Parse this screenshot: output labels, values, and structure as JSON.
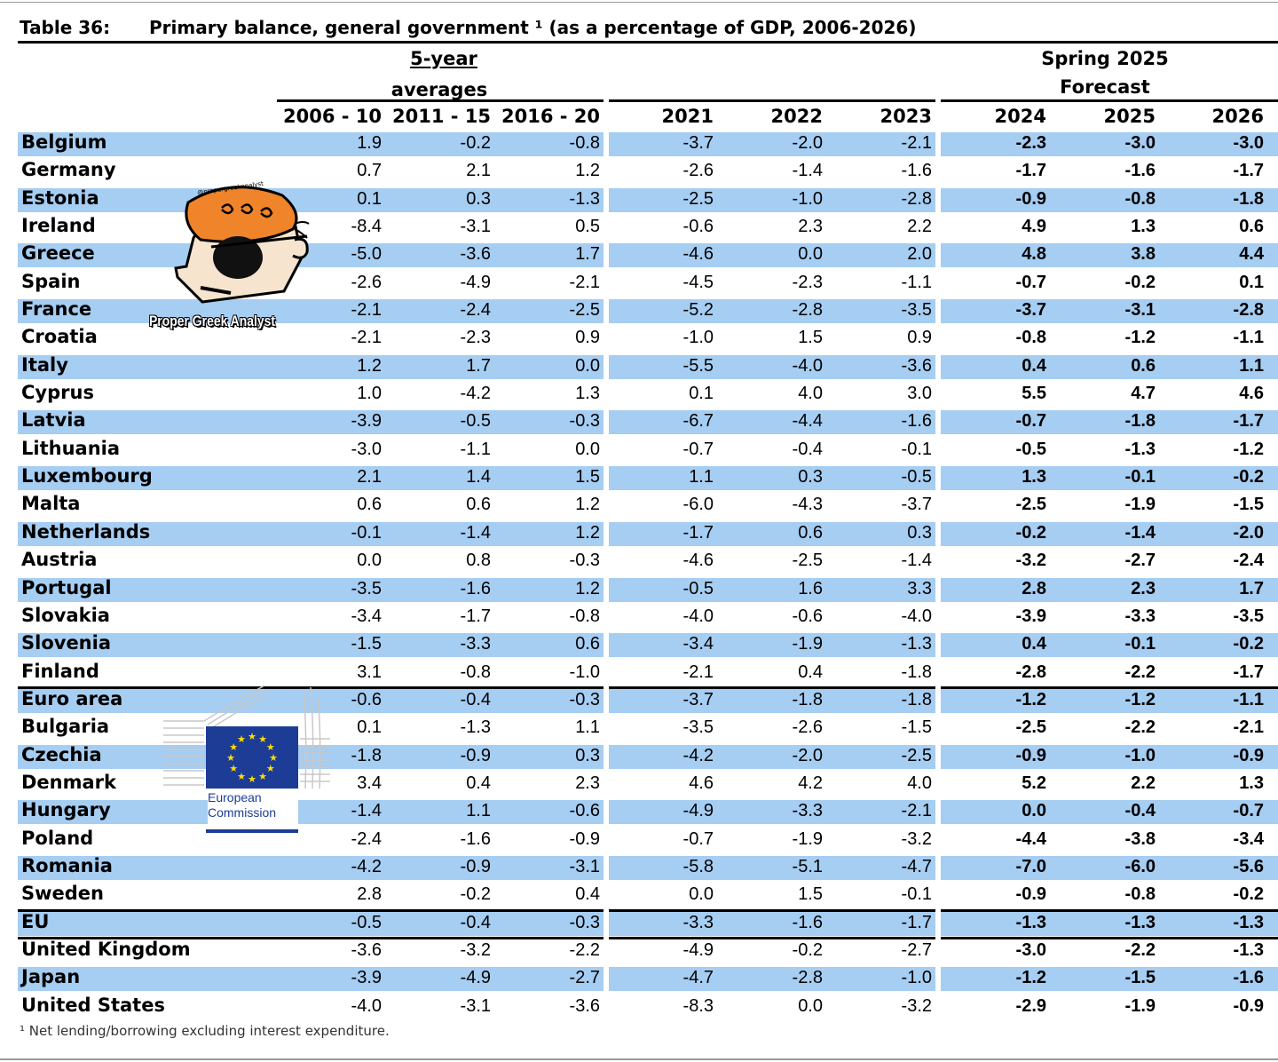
{
  "table": {
    "label": "Table 36:",
    "title": "Primary balance, general government ¹ (as a percentage of GDP, 2006-2026)",
    "group_5yr_line1": "5-year",
    "group_5yr_line2": "averages",
    "forecast_line1": "Spring 2025",
    "forecast_line2": "Forecast",
    "columns": [
      "2006 - 10",
      "2011 - 15",
      "2016 - 20",
      "2021",
      "2022",
      "2023",
      "2024",
      "2025",
      "2026"
    ],
    "rows": [
      {
        "country": "Belgium",
        "values": [
          "1.9",
          "-0.2",
          "-0.8",
          "-3.7",
          "-2.0",
          "-2.1",
          "-2.3",
          "-3.0",
          "-3.0"
        ]
      },
      {
        "country": "Germany",
        "values": [
          "0.7",
          "2.1",
          "1.2",
          "-2.6",
          "-1.4",
          "-1.6",
          "-1.7",
          "-1.6",
          "-1.7"
        ]
      },
      {
        "country": "Estonia",
        "values": [
          "0.1",
          "0.3",
          "-1.3",
          "-2.5",
          "-1.0",
          "-2.8",
          "-0.9",
          "-0.8",
          "-1.8"
        ]
      },
      {
        "country": "Ireland",
        "values": [
          "-8.4",
          "-3.1",
          "0.5",
          "-0.6",
          "2.3",
          "2.2",
          "4.9",
          "1.3",
          "0.6"
        ]
      },
      {
        "country": "Greece",
        "values": [
          "-5.0",
          "-3.6",
          "1.7",
          "-4.6",
          "0.0",
          "2.0",
          "4.8",
          "3.8",
          "4.4"
        ]
      },
      {
        "country": "Spain",
        "values": [
          "-2.6",
          "-4.9",
          "-2.1",
          "-4.5",
          "-2.3",
          "-1.1",
          "-0.7",
          "-0.2",
          "0.1"
        ]
      },
      {
        "country": "France",
        "values": [
          "-2.1",
          "-2.4",
          "-2.5",
          "-5.2",
          "-2.8",
          "-3.5",
          "-3.7",
          "-3.1",
          "-2.8"
        ]
      },
      {
        "country": "Croatia",
        "values": [
          "-2.1",
          "-2.3",
          "0.9",
          "-1.0",
          "1.5",
          "0.9",
          "-0.8",
          "-1.2",
          "-1.1"
        ]
      },
      {
        "country": "Italy",
        "values": [
          "1.2",
          "1.7",
          "0.0",
          "-5.5",
          "-4.0",
          "-3.6",
          "0.4",
          "0.6",
          "1.1"
        ]
      },
      {
        "country": "Cyprus",
        "values": [
          "1.0",
          "-4.2",
          "1.3",
          "0.1",
          "4.0",
          "3.0",
          "5.5",
          "4.7",
          "4.6"
        ]
      },
      {
        "country": "Latvia",
        "values": [
          "-3.9",
          "-0.5",
          "-0.3",
          "-6.7",
          "-4.4",
          "-1.6",
          "-0.7",
          "-1.8",
          "-1.7"
        ]
      },
      {
        "country": "Lithuania",
        "values": [
          "-3.0",
          "-1.1",
          "0.0",
          "-0.7",
          "-0.4",
          "-0.1",
          "-0.5",
          "-1.3",
          "-1.2"
        ]
      },
      {
        "country": "Luxembourg",
        "values": [
          "2.1",
          "1.4",
          "1.5",
          "1.1",
          "0.3",
          "-0.5",
          "1.3",
          "-0.1",
          "-0.2"
        ]
      },
      {
        "country": "Malta",
        "values": [
          "0.6",
          "0.6",
          "1.2",
          "-6.0",
          "-4.3",
          "-3.7",
          "-2.5",
          "-1.9",
          "-1.5"
        ]
      },
      {
        "country": "Netherlands",
        "values": [
          "-0.1",
          "-1.4",
          "1.2",
          "-1.7",
          "0.6",
          "0.3",
          "-0.2",
          "-1.4",
          "-2.0"
        ]
      },
      {
        "country": "Austria",
        "values": [
          "0.0",
          "0.8",
          "-0.3",
          "-4.6",
          "-2.5",
          "-1.4",
          "-3.2",
          "-2.7",
          "-2.4"
        ]
      },
      {
        "country": "Portugal",
        "values": [
          "-3.5",
          "-1.6",
          "1.2",
          "-0.5",
          "1.6",
          "3.3",
          "2.8",
          "2.3",
          "1.7"
        ]
      },
      {
        "country": "Slovakia",
        "values": [
          "-3.4",
          "-1.7",
          "-0.8",
          "-4.0",
          "-0.6",
          "-4.0",
          "-3.9",
          "-3.3",
          "-3.5"
        ]
      },
      {
        "country": "Slovenia",
        "values": [
          "-1.5",
          "-3.3",
          "0.6",
          "-3.4",
          "-1.9",
          "-1.3",
          "0.4",
          "-0.1",
          "-0.2"
        ]
      },
      {
        "country": "Finland",
        "values": [
          "3.1",
          "-0.8",
          "-1.0",
          "-2.1",
          "0.4",
          "-1.8",
          "-2.8",
          "-2.2",
          "-1.7"
        ]
      },
      {
        "country": "Euro area",
        "aggregate": true,
        "values": [
          "-0.6",
          "-0.4",
          "-0.3",
          "-3.7",
          "-1.8",
          "-1.8",
          "-1.2",
          "-1.2",
          "-1.1"
        ]
      },
      {
        "country": "Bulgaria",
        "values": [
          "0.1",
          "-1.3",
          "1.1",
          "-3.5",
          "-2.6",
          "-1.5",
          "-2.5",
          "-2.2",
          "-2.1"
        ]
      },
      {
        "country": "Czechia",
        "values": [
          "-1.8",
          "-0.9",
          "0.3",
          "-4.2",
          "-2.0",
          "-2.5",
          "-0.9",
          "-1.0",
          "-0.9"
        ]
      },
      {
        "country": "Denmark",
        "values": [
          "3.4",
          "0.4",
          "2.3",
          "4.6",
          "4.2",
          "4.0",
          "5.2",
          "2.2",
          "1.3"
        ]
      },
      {
        "country": "Hungary",
        "values": [
          "-1.4",
          "1.1",
          "-0.6",
          "-4.9",
          "-3.3",
          "-2.1",
          "0.0",
          "-0.4",
          "-0.7"
        ]
      },
      {
        "country": "Poland",
        "values": [
          "-2.4",
          "-1.6",
          "-0.9",
          "-0.7",
          "-1.9",
          "-3.2",
          "-4.4",
          "-3.8",
          "-3.4"
        ]
      },
      {
        "country": "Romania",
        "values": [
          "-4.2",
          "-0.9",
          "-3.1",
          "-5.8",
          "-5.1",
          "-4.7",
          "-7.0",
          "-6.0",
          "-5.6"
        ]
      },
      {
        "country": "Sweden",
        "values": [
          "2.8",
          "-0.2",
          "0.4",
          "0.0",
          "1.5",
          "-0.1",
          "-0.9",
          "-0.8",
          "-0.2"
        ]
      },
      {
        "country": "EU",
        "aggregate": true,
        "values": [
          "-0.5",
          "-0.4",
          "-0.3",
          "-3.3",
          "-1.6",
          "-1.7",
          "-1.3",
          "-1.3",
          "-1.3"
        ]
      },
      {
        "country": "United Kingdom",
        "aggregate": true,
        "values": [
          "-3.6",
          "-3.2",
          "-2.2",
          "-4.9",
          "-0.2",
          "-2.7",
          "-3.0",
          "-2.2",
          "-1.3"
        ]
      },
      {
        "country": "Japan",
        "values": [
          "-3.9",
          "-4.9",
          "-2.7",
          "-4.7",
          "-2.8",
          "-1.0",
          "-1.2",
          "-1.5",
          "-1.6"
        ]
      },
      {
        "country": "United States",
        "values": [
          "-4.0",
          "-3.1",
          "-3.6",
          "-8.3",
          "0.0",
          "-3.2",
          "-2.9",
          "-1.9",
          "-0.9"
        ]
      }
    ],
    "footnote": "¹ Net lending/borrowing excluding interest expenditure."
  },
  "overlays": {
    "cartoon_caption": "Proper Greek Analyst",
    "cartoon_handle": "@propergreekanalyst",
    "ec_logo_line1": "European",
    "ec_logo_line2": "Commission"
  },
  "colors": {
    "stripe": "#a6cdf2",
    "ec_blue": "#1d3c96",
    "ec_star": "#ffdd00"
  }
}
